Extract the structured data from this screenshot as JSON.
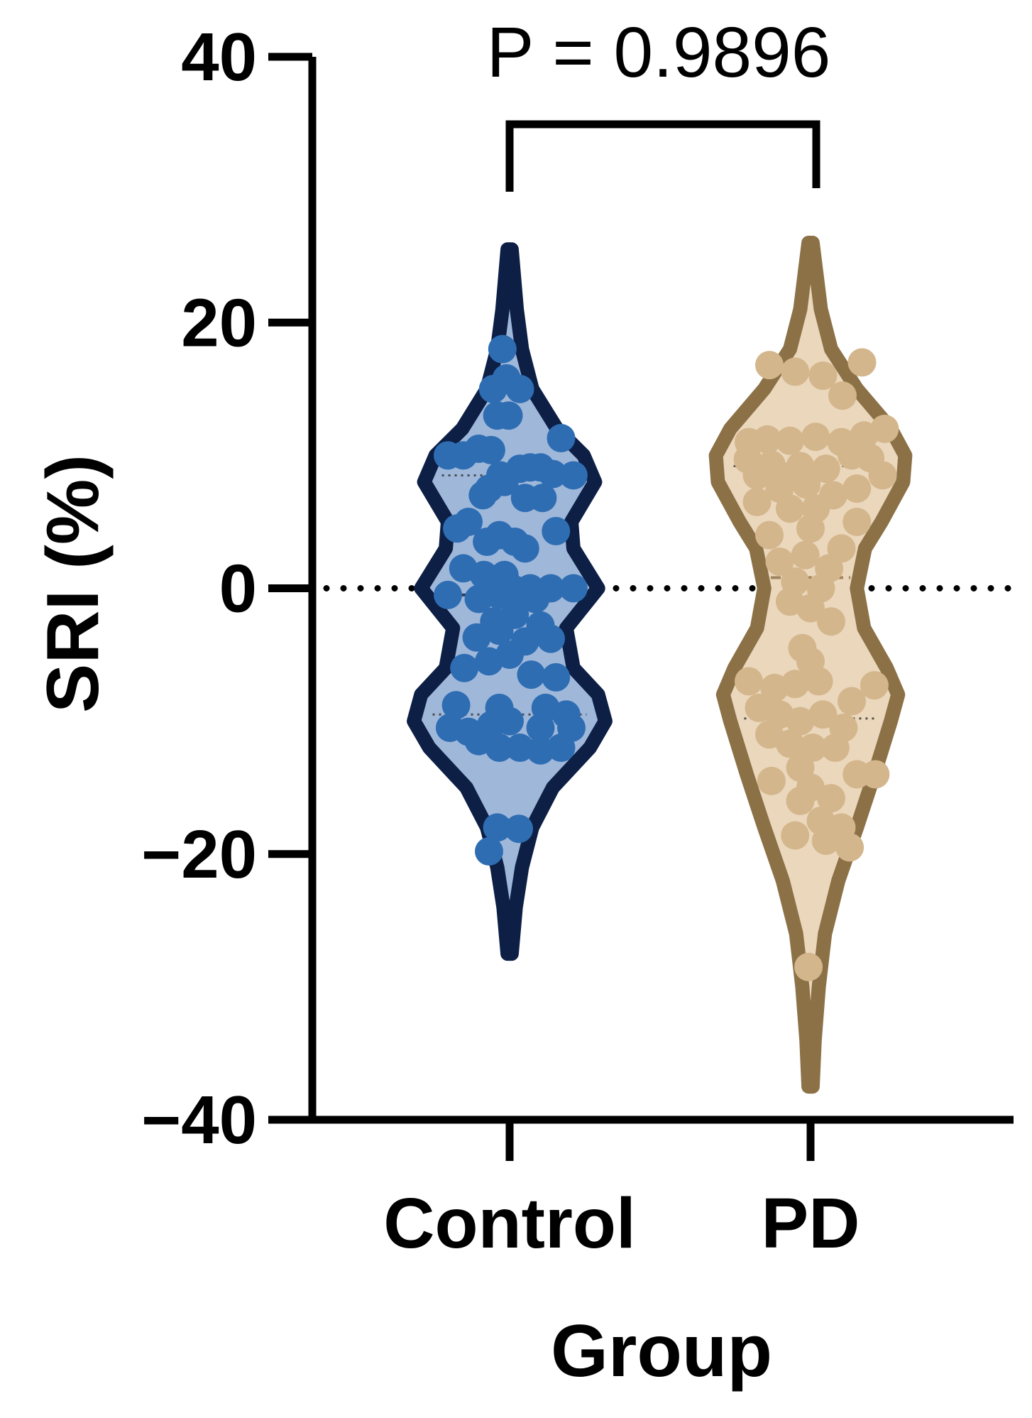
{
  "chart_data": {
    "type": "violin",
    "title": "",
    "xlabel": "Group",
    "ylabel": "SRI (%)",
    "ylim": [
      -40,
      40
    ],
    "yticks": [
      40,
      20,
      0,
      -20,
      -40
    ],
    "ytick_labels": [
      "40",
      "20",
      "0",
      "−20",
      "−40"
    ],
    "reference_line": 0,
    "annotation": {
      "text": "P = 0.9896",
      "between": [
        "Control",
        "PD"
      ]
    },
    "categories": [
      "Control",
      "PD"
    ],
    "series": [
      {
        "category": "Control",
        "fill_color": "#9fb8da",
        "outline_color": "#0d1f45",
        "point_color": "#2f6db3",
        "range": [
          -27.5,
          25.5
        ],
        "quartiles": [
          -9.5,
          -0.5,
          8.5
        ],
        "density": [
          [
            -27.5,
            0.02
          ],
          [
            -24,
            0.06
          ],
          [
            -21,
            0.12
          ],
          [
            -18,
            0.22
          ],
          [
            -15,
            0.42
          ],
          [
            -12,
            0.78
          ],
          [
            -10,
            0.93
          ],
          [
            -8,
            0.86
          ],
          [
            -6,
            0.62
          ],
          [
            -3,
            0.55
          ],
          [
            0,
            0.86
          ],
          [
            3,
            0.62
          ],
          [
            5,
            0.6
          ],
          [
            8,
            0.83
          ],
          [
            10,
            0.72
          ],
          [
            12,
            0.46
          ],
          [
            15,
            0.22
          ],
          [
            18,
            0.12
          ],
          [
            21,
            0.07
          ],
          [
            25.5,
            0.02
          ]
        ],
        "points": [
          [
            -0.07,
            18
          ],
          [
            -0.16,
            15
          ],
          [
            -0.03,
            15.8
          ],
          [
            0.1,
            15
          ],
          [
            -0.12,
            13
          ],
          [
            -0.01,
            13
          ],
          [
            -0.6,
            10
          ],
          [
            -0.45,
            10
          ],
          [
            -0.3,
            10.5
          ],
          [
            -0.18,
            10.4
          ],
          [
            0.5,
            11.3
          ],
          [
            0.2,
            9.1
          ],
          [
            0.3,
            9.1
          ],
          [
            0.1,
            9.0
          ],
          [
            -0.09,
            8.5
          ],
          [
            0.42,
            8.6
          ],
          [
            0.62,
            8.5
          ],
          [
            -0.05,
            8.0
          ],
          [
            -0.2,
            7.5
          ],
          [
            0.15,
            6.8
          ],
          [
            0.32,
            6.8
          ],
          [
            -0.26,
            7.0
          ],
          [
            -0.4,
            5.0
          ],
          [
            -0.51,
            4.5
          ],
          [
            0.45,
            4.3
          ],
          [
            -0.22,
            3.5
          ],
          [
            -0.1,
            4.0
          ],
          [
            0.05,
            3.5
          ],
          [
            0.15,
            3.0
          ],
          [
            -0.45,
            1.5
          ],
          [
            -0.25,
            1.0
          ],
          [
            -0.05,
            1.0
          ],
          [
            0.2,
            0.0
          ],
          [
            0.4,
            0.0
          ],
          [
            0.62,
            0.0
          ],
          [
            -0.6,
            -0.5
          ],
          [
            -0.3,
            -0.8
          ],
          [
            -0.1,
            -0.5
          ],
          [
            0.05,
            -0.1
          ],
          [
            0.25,
            -0.8
          ],
          [
            -0.15,
            -2.5
          ],
          [
            0.05,
            -2.0
          ],
          [
            0.3,
            -2.8
          ],
          [
            -0.32,
            -3.7
          ],
          [
            -0.1,
            -3.2
          ],
          [
            0.15,
            -4.0
          ],
          [
            0.4,
            -3.8
          ],
          [
            -0.44,
            -6.0
          ],
          [
            -0.2,
            -5.5
          ],
          [
            0.0,
            -5.0
          ],
          [
            0.21,
            -6.5
          ],
          [
            0.45,
            -6.7
          ],
          [
            -0.52,
            -8.8
          ],
          [
            -0.1,
            -9.0
          ],
          [
            0.35,
            -9.0
          ],
          [
            0.55,
            -9.5
          ],
          [
            -0.58,
            -10.5
          ],
          [
            -0.4,
            -10.8
          ],
          [
            -0.18,
            -10.3
          ],
          [
            0.0,
            -10.0
          ],
          [
            0.3,
            -10.5
          ],
          [
            0.6,
            -10.5
          ],
          [
            -0.3,
            -11.5
          ],
          [
            -0.1,
            -12.0
          ],
          [
            0.1,
            -12.0
          ],
          [
            0.3,
            -12.2
          ],
          [
            0.5,
            -12.0
          ],
          [
            -0.12,
            -18.0
          ],
          [
            0.09,
            -18.1
          ],
          [
            -0.2,
            -19.8
          ]
        ]
      },
      {
        "category": "PD",
        "fill_color": "#ead7bc",
        "outline_color": "#8c7147",
        "point_color": "#d4b68c",
        "range": [
          -37.5,
          26
        ],
        "quartiles": [
          -9.8,
          0.8,
          9.2
        ],
        "density": [
          [
            -37.5,
            0.02
          ],
          [
            -34,
            0.04
          ],
          [
            -30,
            0.08
          ],
          [
            -26,
            0.14
          ],
          [
            -22,
            0.27
          ],
          [
            -18,
            0.45
          ],
          [
            -14,
            0.62
          ],
          [
            -10,
            0.78
          ],
          [
            -8,
            0.85
          ],
          [
            -6,
            0.74
          ],
          [
            -3,
            0.52
          ],
          [
            0,
            0.45
          ],
          [
            3,
            0.53
          ],
          [
            5,
            0.69
          ],
          [
            8,
            0.9
          ],
          [
            10,
            0.92
          ],
          [
            12,
            0.78
          ],
          [
            15,
            0.45
          ],
          [
            18,
            0.2
          ],
          [
            21,
            0.1
          ],
          [
            26,
            0.02
          ]
        ],
        "points": [
          [
            -0.4,
            16.8
          ],
          [
            -0.15,
            16.3
          ],
          [
            0.12,
            16.0
          ],
          [
            0.5,
            17.0
          ],
          [
            0.31,
            14.5
          ],
          [
            -0.6,
            11.0
          ],
          [
            -0.42,
            11.2
          ],
          [
            -0.2,
            11.1
          ],
          [
            0.05,
            11.4
          ],
          [
            0.3,
            11.0
          ],
          [
            0.52,
            11.5
          ],
          [
            0.72,
            12.0
          ],
          [
            -0.61,
            9.7
          ],
          [
            -0.38,
            9.3
          ],
          [
            -0.1,
            9.2
          ],
          [
            0.15,
            9.0
          ],
          [
            0.4,
            10.0
          ],
          [
            0.58,
            9.8
          ],
          [
            -0.52,
            8.5
          ],
          [
            -0.18,
            8.5
          ],
          [
            0.7,
            8.5
          ],
          [
            -0.3,
            7.5
          ],
          [
            -0.04,
            7.8
          ],
          [
            0.22,
            7.0
          ],
          [
            0.45,
            7.5
          ],
          [
            -0.52,
            6.5
          ],
          [
            -0.2,
            6.0
          ],
          [
            0.05,
            6.0
          ],
          [
            0.45,
            5.0
          ],
          [
            -0.4,
            4.0
          ],
          [
            0.0,
            4.5
          ],
          [
            0.3,
            3.0
          ],
          [
            -0.3,
            2.0
          ],
          [
            -0.05,
            2.5
          ],
          [
            0.18,
            1.5
          ],
          [
            -0.15,
            0.5
          ],
          [
            0.1,
            0.0
          ],
          [
            -0.2,
            -1.0
          ],
          [
            0.0,
            -1.5
          ],
          [
            0.2,
            -2.5
          ],
          [
            -0.08,
            -4.5
          ],
          [
            0.0,
            -5.5
          ],
          [
            -0.6,
            -7.0
          ],
          [
            -0.35,
            -7.5
          ],
          [
            -0.15,
            -7.2
          ],
          [
            0.08,
            -7.0
          ],
          [
            0.4,
            -8.5
          ],
          [
            0.62,
            -7.3
          ],
          [
            -0.5,
            -9.0
          ],
          [
            -0.3,
            -9.5
          ],
          [
            -0.1,
            -10.0
          ],
          [
            0.12,
            -9.5
          ],
          [
            0.32,
            -10.5
          ],
          [
            -0.4,
            -11.0
          ],
          [
            -0.2,
            -11.7
          ],
          [
            0.02,
            -12.0
          ],
          [
            0.24,
            -12.0
          ],
          [
            -0.1,
            -13.5
          ],
          [
            0.45,
            -14.0
          ],
          [
            0.63,
            -14.0
          ],
          [
            -0.38,
            -14.5
          ],
          [
            0.0,
            -15.0
          ],
          [
            0.2,
            -15.8
          ],
          [
            -0.1,
            -16.0
          ],
          [
            0.1,
            -17.5
          ],
          [
            0.3,
            -18.0
          ],
          [
            -0.15,
            -18.6
          ],
          [
            0.15,
            -19.0
          ],
          [
            0.38,
            -19.5
          ],
          [
            -0.02,
            -28.5
          ]
        ]
      }
    ]
  }
}
